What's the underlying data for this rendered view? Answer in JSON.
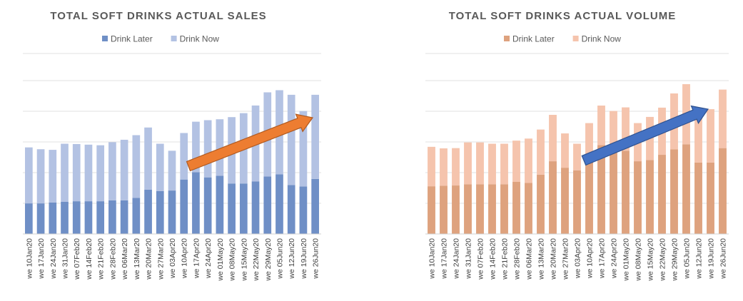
{
  "chart_data": [
    {
      "type": "bar",
      "stacked": true,
      "title": "TOTAL SOFT DRINKS ACTUAL SALES",
      "legend_position": "top",
      "grid": true,
      "y_axis_labels_shown": false,
      "categories": [
        "we 10Jan20",
        "we 17Jan20",
        "we 24Jan20",
        "we 31Jan20",
        "we 07Feb20",
        "we 14Feb20",
        "we 21Feb20",
        "we 28Feb20",
        "we 06Mar20",
        "we 13Mar20",
        "we 20Mar20",
        "we 27Mar20",
        "we 03Apr20",
        "we 10Apr20",
        "we 17Apr20",
        "we 24Apr20",
        "we 01May20",
        "we 08May20",
        "we 15May20",
        "we 22May20",
        "we 29May20",
        "we 05Jun20",
        "we 12Jun20",
        "we 19Jun20",
        "we 26Jun20"
      ],
      "series": [
        {
          "name": "Drink Later",
          "color": "#6f8fc6",
          "values": [
            1.0,
            1.0,
            1.03,
            1.05,
            1.07,
            1.07,
            1.07,
            1.1,
            1.1,
            1.18,
            1.45,
            1.4,
            1.42,
            1.78,
            2.02,
            1.85,
            1.9,
            1.65,
            1.65,
            1.72,
            1.88,
            1.95,
            1.6,
            1.55,
            1.8
          ]
        },
        {
          "name": "Drink Now",
          "color": "#b3c2e3",
          "values": [
            1.83,
            1.77,
            1.72,
            1.9,
            1.87,
            1.85,
            1.83,
            1.9,
            1.98,
            2.05,
            2.03,
            1.55,
            1.3,
            1.52,
            1.65,
            1.87,
            1.85,
            2.17,
            2.3,
            2.48,
            2.75,
            2.75,
            2.95,
            2.47,
            2.75
          ]
        }
      ],
      "annotation": {
        "type": "trend-arrow",
        "color": "#ed7d31"
      }
    },
    {
      "type": "bar",
      "stacked": true,
      "title": "TOTAL SOFT DRINKS ACTUAL VOLUME",
      "legend_position": "top",
      "grid": true,
      "y_axis_labels_shown": false,
      "categories": [
        "we 10Jan20",
        "we 17Jan20",
        "we 24Jan20",
        "we 31Jan20",
        "we 07Feb20",
        "we 14Feb20",
        "we 21Feb20",
        "we 28Feb20",
        "we 06Mar20",
        "we 13Mar20",
        "we 20Mar20",
        "we 27Mar20",
        "we 03Apr20",
        "we 10Apr20",
        "we 17Apr20",
        "we 24Apr20",
        "we 01May20",
        "we 08May20",
        "we 15May20",
        "we 22May20",
        "we 29May20",
        "we 05Jun20",
        "we 12Jun20",
        "we 19Jun20",
        "we 26Jun20"
      ],
      "series": [
        {
          "name": "Drink Later",
          "color": "#dea27e",
          "values": [
            1.85,
            1.87,
            1.88,
            1.93,
            1.93,
            1.93,
            1.93,
            2.02,
            1.98,
            2.3,
            2.82,
            2.57,
            2.47,
            2.83,
            3.45,
            3.15,
            3.23,
            2.82,
            2.87,
            3.07,
            3.28,
            3.48,
            2.77,
            2.77,
            3.33
          ]
        },
        {
          "name": "Drink Now",
          "color": "#f5c4ad",
          "values": [
            1.53,
            1.45,
            1.45,
            1.62,
            1.62,
            1.57,
            1.57,
            1.6,
            1.72,
            1.75,
            1.8,
            1.33,
            1.03,
            1.47,
            1.53,
            1.62,
            1.68,
            1.48,
            1.67,
            1.83,
            2.17,
            2.33,
            1.88,
            2.07,
            2.27
          ]
        }
      ],
      "annotation": {
        "type": "trend-arrow",
        "color": "#4472c4"
      }
    }
  ]
}
